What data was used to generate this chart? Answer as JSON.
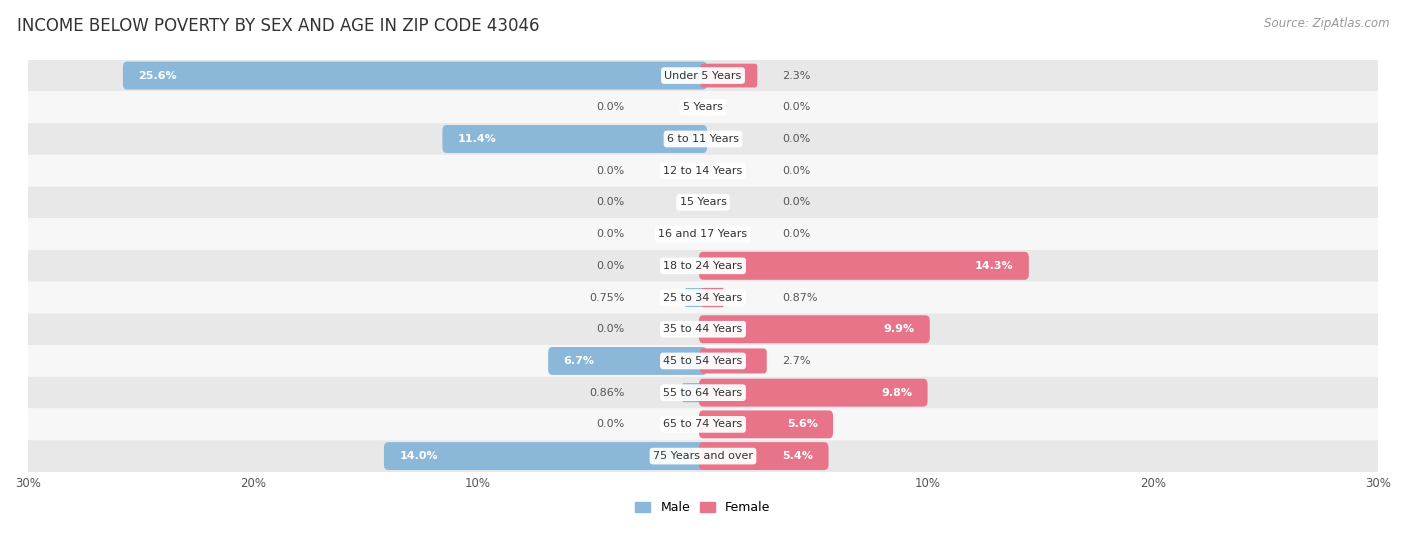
{
  "title": "INCOME BELOW POVERTY BY SEX AND AGE IN ZIP CODE 43046",
  "source": "Source: ZipAtlas.com",
  "categories": [
    "Under 5 Years",
    "5 Years",
    "6 to 11 Years",
    "12 to 14 Years",
    "15 Years",
    "16 and 17 Years",
    "18 to 24 Years",
    "25 to 34 Years",
    "35 to 44 Years",
    "45 to 54 Years",
    "55 to 64 Years",
    "65 to 74 Years",
    "75 Years and over"
  ],
  "male_values": [
    25.6,
    0.0,
    11.4,
    0.0,
    0.0,
    0.0,
    0.0,
    0.75,
    0.0,
    6.7,
    0.86,
    0.0,
    14.0
  ],
  "female_values": [
    2.3,
    0.0,
    0.0,
    0.0,
    0.0,
    0.0,
    14.3,
    0.87,
    9.9,
    2.7,
    9.8,
    5.6,
    5.4
  ],
  "male_color": "#8BB8D8",
  "female_color": "#E8748A",
  "male_label": "Male",
  "female_label": "Female",
  "xlim": 30.0,
  "bar_height": 0.52,
  "bg_color_odd": "#e8e8e8",
  "bg_color_even": "#f7f7f7",
  "title_fontsize": 12,
  "source_fontsize": 8.5,
  "label_fontsize": 8,
  "category_fontsize": 8,
  "axis_label_fontsize": 8.5
}
